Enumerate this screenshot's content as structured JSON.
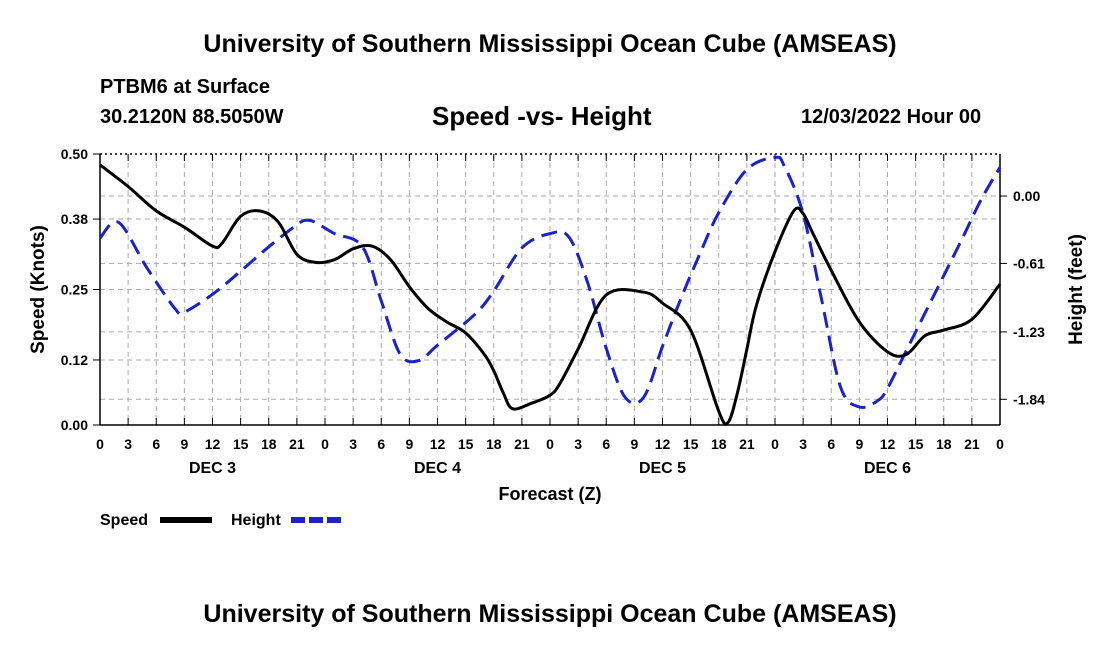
{
  "header": {
    "title": "University of Southern Mississippi Ocean Cube (AMSEAS)",
    "station": "PTBM6 at Surface",
    "location": "30.2120N  88.5050W",
    "chart_title": "Speed -vs- Height",
    "date": "12/03/2022 Hour 00"
  },
  "footer": {
    "title": "University of Southern Mississippi Ocean Cube (AMSEAS)"
  },
  "colors": {
    "speed": "#000000",
    "height": "#1a22c8",
    "grid": "#aaaaaa"
  },
  "chart_data": {
    "type": "line",
    "title": "Speed -vs- Height",
    "xlabel": "Forecast (Z)",
    "ylabel": "Speed (Knots)",
    "y2label": "Height (feet)",
    "xlim": [
      0,
      96
    ],
    "ylim": [
      0,
      0.5
    ],
    "y2lim": [
      -2.0726,
      0.3804
    ],
    "x_ticks": [
      0,
      3,
      6,
      9,
      12,
      15,
      18,
      21,
      24,
      27,
      30,
      33,
      36,
      39,
      42,
      45,
      48,
      51,
      54,
      57,
      60,
      63,
      66,
      69,
      72,
      75,
      78,
      81,
      84,
      87,
      90,
      93,
      96
    ],
    "x_tick_labels": [
      "0",
      "3",
      "6",
      "9",
      "12",
      "15",
      "18",
      "21",
      "0",
      "3",
      "6",
      "9",
      "12",
      "15",
      "18",
      "21",
      "0",
      "3",
      "6",
      "9",
      "12",
      "15",
      "18",
      "21",
      "0",
      "3",
      "6",
      "9",
      "12",
      "15",
      "18",
      "21",
      "0"
    ],
    "day_labels": [
      {
        "x": 12,
        "label": "DEC 3"
      },
      {
        "x": 36,
        "label": "DEC 4"
      },
      {
        "x": 60,
        "label": "DEC 5"
      },
      {
        "x": 84,
        "label": "DEC 6"
      }
    ],
    "y_ticks": [
      0.0,
      0.12,
      0.25,
      0.38,
      0.5
    ],
    "y_tick_labels": [
      "0.00",
      "0.12",
      "0.25",
      "0.38",
      "0.50"
    ],
    "y2_ticks": [
      0.0,
      -0.61,
      -1.23,
      -1.84
    ],
    "y2_tick_labels": [
      "0.00",
      "-0.61",
      "-1.23",
      "-1.84"
    ],
    "legend": [
      {
        "name": "Speed",
        "style": "solid"
      },
      {
        "name": "Height",
        "style": "dashed"
      }
    ],
    "series": [
      {
        "name": "Speed",
        "axis": "left",
        "x": [
          0,
          3,
          6,
          9,
          12,
          13,
          15,
          17,
          19,
          21,
          23,
          25,
          27,
          29,
          31,
          33,
          35,
          37,
          39,
          41,
          42,
          43,
          44,
          46,
          48,
          49,
          51,
          54,
          58,
          60,
          63,
          66,
          67,
          68,
          69,
          70,
          72,
          74,
          75,
          76,
          78,
          81,
          84,
          86,
          88,
          90,
          93,
          96
        ],
        "y": [
          0.48,
          0.44,
          0.395,
          0.365,
          0.33,
          0.335,
          0.385,
          0.395,
          0.375,
          0.315,
          0.3,
          0.305,
          0.325,
          0.33,
          0.305,
          0.255,
          0.215,
          0.19,
          0.17,
          0.13,
          0.1,
          0.06,
          0.03,
          0.04,
          0.055,
          0.075,
          0.14,
          0.24,
          0.245,
          0.225,
          0.175,
          0.025,
          0.005,
          0.06,
          0.14,
          0.22,
          0.32,
          0.395,
          0.39,
          0.355,
          0.285,
          0.19,
          0.135,
          0.13,
          0.165,
          0.175,
          0.195,
          0.26
        ]
      },
      {
        "name": "Height",
        "axis": "right",
        "x": [
          0,
          2,
          5,
          8,
          9,
          12,
          15,
          18,
          21,
          22,
          23,
          25,
          28,
          30,
          32,
          34,
          36,
          40,
          42,
          45,
          48,
          50,
          52,
          54,
          56,
          58,
          60,
          62,
          64,
          66,
          69,
          72,
          73,
          75,
          77,
          79,
          81,
          83,
          84,
          86,
          88,
          90,
          92,
          94,
          96
        ],
        "y": [
          -0.38,
          -0.24,
          -0.65,
          -1.02,
          -1.05,
          -0.89,
          -0.68,
          -0.46,
          -0.26,
          -0.22,
          -0.24,
          -0.34,
          -0.46,
          -0.95,
          -1.43,
          -1.49,
          -1.35,
          -1.07,
          -0.86,
          -0.47,
          -0.34,
          -0.37,
          -0.78,
          -1.38,
          -1.82,
          -1.82,
          -1.36,
          -0.92,
          -0.52,
          -0.15,
          0.24,
          0.35,
          0.27,
          -0.16,
          -0.95,
          -1.73,
          -1.91,
          -1.85,
          -1.74,
          -1.4,
          -1.06,
          -0.72,
          -0.38,
          -0.03,
          0.26
        ]
      }
    ]
  }
}
